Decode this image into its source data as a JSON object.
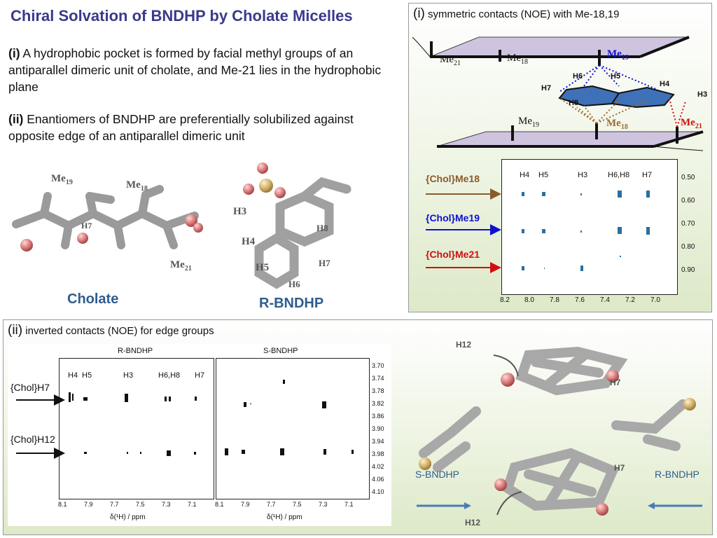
{
  "title": "Chiral Solvation of BNDHP by Cholate Micelles",
  "para1": {
    "marker": "(i)",
    "text": " A hydrophobic pocket is formed by facial methyl groups of an antiparallel dimeric unit of cholate, and Me-21 lies in the hydrophobic plane"
  },
  "para2": {
    "marker": "(ii)",
    "text": " Enantiomers of BNDHP are preferentially solubilized against opposite edge of an antiparallel dimeric unit"
  },
  "cholate": {
    "caption": "Cholate",
    "labels": {
      "me19": "Me",
      "me19_sub": "19",
      "me18": "Me",
      "me18_sub": "18",
      "h7": "H7",
      "me21": "Me",
      "me21_sub": "21"
    }
  },
  "bndhp": {
    "caption": "R-BNDHP",
    "labels": {
      "h3": "H3",
      "h4": "H4",
      "h5": "H5",
      "h6": "H6",
      "h7": "H7",
      "h8": "H8"
    }
  },
  "panel1": {
    "marker": "(i)",
    "title": " symmetric contacts (NOE) with Me-18,19",
    "diagram": {
      "me21_top": "Me",
      "me21_top_sub": "21",
      "me18_top": "Me",
      "me18_top_sub": "18",
      "me19_top": "Me",
      "me19_top_sub": "19",
      "h6": "H6",
      "h5": "H5",
      "h4": "H4",
      "h7": "H7",
      "h3": "H3",
      "h8": "H8",
      "me19_bot": "Me",
      "me19_bot_sub": "19",
      "me18_bot": "Me",
      "me18_bot_sub": "18",
      "me21_bot": "Me",
      "me21_bot_sub": "21"
    },
    "spectrum": {
      "col_labels": [
        "H4",
        "H5",
        "H3",
        "H6,H8",
        "H7"
      ],
      "x_ticks": [
        "8.2",
        "8.0",
        "7.8",
        "7.6",
        "7.4",
        "7.2",
        "7.0"
      ],
      "y_ticks": [
        "0.50",
        "0.60",
        "0.70",
        "0.80",
        "0.90"
      ],
      "rows": [
        {
          "label": "{Chol}Me18",
          "color": "#8b5a2b"
        },
        {
          "label": "{Chol}Me19",
          "color": "#1010d0"
        },
        {
          "label": "{Chol}Me21",
          "color": "#d01010"
        }
      ]
    }
  },
  "panel2": {
    "marker": "(ii)",
    "title": " inverted contacts (NOE) for edge groups",
    "spectrum_left_title": "R-BNDHP",
    "spectrum_right_title": "S-BNDHP",
    "col_labels": [
      "H4",
      "H5",
      "H3",
      "H6,H8",
      "H7"
    ],
    "x_ticks": [
      "8.1",
      "7.9",
      "7.7",
      "7.5",
      "7.3",
      "7.1"
    ],
    "x_axis_label": "δ(¹H) / ppm",
    "y_ticks": [
      "3.70",
      "3.74",
      "3.78",
      "3.82",
      "3.86",
      "3.90",
      "3.94",
      "3.98",
      "4.02",
      "4.06",
      "4.10"
    ],
    "rows": [
      "{Chol}H7",
      "{Chol}H12"
    ],
    "models": {
      "h12_top": "H12",
      "h7_top": "H7",
      "h7_bot": "H7",
      "h12_bot": "H12",
      "s_label": "S-BNDHP",
      "r_label": "R-BNDHP"
    }
  }
}
